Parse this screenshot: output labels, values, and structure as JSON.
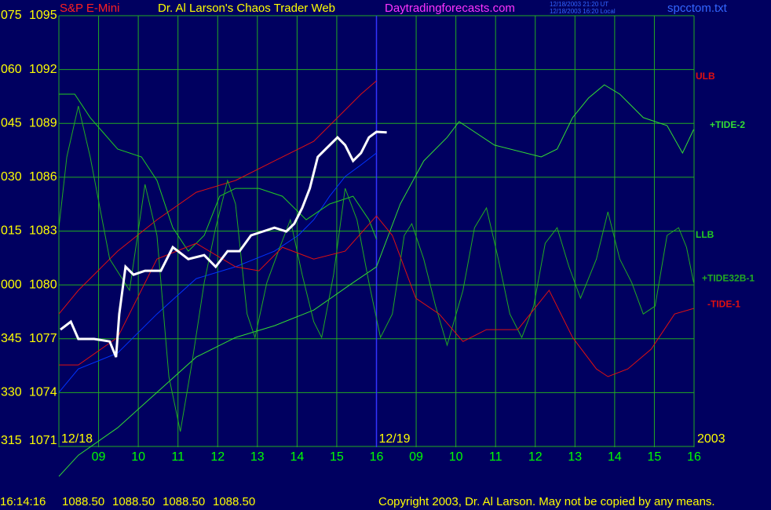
{
  "chart_data": {
    "type": "line",
    "header": {
      "symbol": "S&P E-Mini",
      "title": "Dr. Al Larson's Chaos Trader Web",
      "site": "Daytradingforecasts.com",
      "timestamp_ut": "12/18/2003 21:20 UT",
      "timestamp_local": "12/18/2003 16:20 Local",
      "file": "spcctom.txt"
    },
    "xlim": [
      0,
      16
    ],
    "ylim": [
      1071,
      1095
    ],
    "yticks": [
      1071,
      1074,
      1077,
      1080,
      1083,
      1086,
      1089,
      1092,
      1095
    ],
    "angle_labels": [
      "315",
      "330",
      "345",
      "000",
      "015",
      "030",
      "045",
      "060",
      "075"
    ],
    "xticks": [
      {
        "value": 1,
        "label": "09"
      },
      {
        "value": 2,
        "label": "10"
      },
      {
        "value": 3,
        "label": "11"
      },
      {
        "value": 4,
        "label": "12"
      },
      {
        "value": 5,
        "label": "13"
      },
      {
        "value": 6,
        "label": "14"
      },
      {
        "value": 7,
        "label": "15"
      },
      {
        "value": 8,
        "label": "16"
      },
      {
        "value": 9,
        "label": "09"
      },
      {
        "value": 10,
        "label": "10"
      },
      {
        "value": 11,
        "label": "11"
      },
      {
        "value": 12,
        "label": "12"
      },
      {
        "value": 13,
        "label": "13"
      },
      {
        "value": 14,
        "label": "14"
      },
      {
        "value": 15,
        "label": "15"
      },
      {
        "value": 16,
        "label": "16"
      }
    ],
    "dates": [
      {
        "value": 0,
        "label": "12/18"
      },
      {
        "value": 8,
        "label": "12/19"
      }
    ],
    "year_label": "2003",
    "grid": true,
    "series": [
      {
        "color": "#0033ff",
        "x": [
          0,
          0.49,
          1.48,
          2.47,
          3.46,
          4.45,
          5.43,
          6.03,
          6.42,
          6.82,
          7.21,
          7.61,
          8.0
        ],
        "values": [
          1074.01,
          1075.32,
          1076.2,
          1078.38,
          1080.35,
          1081.01,
          1081.88,
          1082.76,
          1083.63,
          1084.94,
          1086.04,
          1086.69,
          1087.35
        ]
      },
      {
        "name": "ULB",
        "color": "#e01010",
        "x": [
          0,
          0.49,
          1.48,
          2.47,
          3.46,
          4.45,
          5.43,
          6.42,
          7.02,
          7.61,
          8.0
        ],
        "values": [
          1078.38,
          1079.7,
          1081.88,
          1083.63,
          1085.16,
          1085.82,
          1086.91,
          1088.0,
          1089.32,
          1090.63,
          1091.37
        ]
      },
      {
        "name": "+TIDE-2",
        "color": "#33dd33",
        "x": [
          0,
          0.49,
          1.48,
          2.47,
          3.46,
          4.45,
          5.43,
          6.42,
          7.41,
          8.0,
          8.6,
          9.19,
          9.78,
          10.08,
          10.97,
          12.15,
          12.55,
          12.94,
          13.34,
          13.74,
          14.13,
          14.72,
          15.32,
          15.71,
          15.99
        ],
        "values": [
          1069.33,
          1070.51,
          1072.04,
          1074.01,
          1075.98,
          1077.07,
          1077.73,
          1078.6,
          1080.13,
          1081.01,
          1084.51,
          1086.91,
          1088.22,
          1089.1,
          1087.79,
          1087.13,
          1087.57,
          1089.32,
          1090.41,
          1091.15,
          1090.63,
          1089.32,
          1088.88,
          1087.35,
          1088.66
        ]
      },
      {
        "name": "LLB",
        "color": "#22cc22",
        "x": [
          0,
          0.4,
          0.79,
          1.48,
          2.08,
          2.47,
          2.87,
          3.26,
          3.66,
          4.05,
          4.45,
          5.04,
          5.63,
          6.23,
          6.82,
          7.41,
          7.81,
          8.0
        ],
        "values": [
          1090.63,
          1090.63,
          1089.32,
          1087.57,
          1087.13,
          1085.82,
          1083.19,
          1081.88,
          1082.76,
          1084.94,
          1085.38,
          1085.38,
          1084.94,
          1083.63,
          1084.51,
          1084.94,
          1083.63,
          1082.54
        ]
      },
      {
        "name": "+TIDE32B-1",
        "color": "#22aa22",
        "x": [
          0,
          0.2,
          0.49,
          0.79,
          1.28,
          1.78,
          2.17,
          2.47,
          2.77,
          3.06,
          3.36,
          3.66,
          3.95,
          4.25,
          4.45,
          4.74,
          4.94,
          5.24,
          5.53,
          5.83,
          6.13,
          6.42,
          6.62,
          6.92,
          7.21,
          7.51,
          7.81,
          8.1,
          8.4,
          8.7,
          8.89,
          9.19,
          9.49,
          9.78,
          10.18,
          10.47,
          10.77,
          11.07,
          11.36,
          11.66,
          11.96,
          12.25,
          12.55,
          12.85,
          13.14,
          13.54,
          13.83,
          14.13,
          14.43,
          14.72,
          15.02,
          15.32,
          15.61,
          15.81,
          15.99
        ],
        "values": [
          1083.19,
          1087.13,
          1089.97,
          1087.13,
          1081.44,
          1079.7,
          1085.6,
          1082.76,
          1074.89,
          1071.83,
          1075.76,
          1080.13,
          1083.19,
          1085.82,
          1084.51,
          1078.38,
          1077.07,
          1080.13,
          1081.88,
          1083.63,
          1080.57,
          1077.95,
          1077.07,
          1080.57,
          1085.38,
          1083.63,
          1080.13,
          1077.07,
          1078.38,
          1082.76,
          1083.41,
          1081.44,
          1078.82,
          1076.64,
          1079.7,
          1083.19,
          1084.29,
          1081.44,
          1078.38,
          1077.07,
          1078.82,
          1082.32,
          1083.19,
          1081.01,
          1079.26,
          1081.44,
          1084.07,
          1081.44,
          1080.13,
          1078.38,
          1078.82,
          1082.76,
          1083.19,
          1082.1,
          1080.13
        ]
      },
      {
        "name": "-TIDE-1",
        "color": "#e01010",
        "x": [
          0,
          0.49,
          1.48,
          2.47,
          3.46,
          4.45,
          5.04,
          5.63,
          6.42,
          7.21,
          8.0,
          8.4,
          8.99,
          9.58,
          10.18,
          10.77,
          11.56,
          12.35,
          12.94,
          13.54,
          13.83,
          14.33,
          14.92,
          15.51,
          15.99
        ],
        "values": [
          1075.54,
          1075.54,
          1077.07,
          1081.44,
          1082.32,
          1081.01,
          1080.79,
          1082.1,
          1081.44,
          1081.88,
          1083.85,
          1082.76,
          1079.26,
          1078.38,
          1076.85,
          1077.51,
          1077.51,
          1079.7,
          1077.07,
          1075.32,
          1074.89,
          1075.32,
          1076.42,
          1078.38,
          1078.69
        ]
      },
      {
        "color": "#ffffff",
        "x": [
          0.04,
          0.3,
          0.49,
          0.89,
          1.28,
          1.44,
          1.52,
          1.68,
          1.88,
          2.17,
          2.57,
          2.87,
          3.26,
          3.66,
          3.95,
          4.25,
          4.55,
          4.84,
          5.14,
          5.43,
          5.73,
          5.93,
          6.13,
          6.32,
          6.52,
          6.72,
          7.02,
          7.21,
          7.41,
          7.61,
          7.81,
          8.0,
          8.26
        ],
        "values": [
          1077.51,
          1077.95,
          1076.99,
          1076.99,
          1076.85,
          1075.98,
          1078.38,
          1081.01,
          1080.57,
          1080.79,
          1080.79,
          1082.1,
          1081.44,
          1081.66,
          1081.01,
          1081.88,
          1081.88,
          1082.76,
          1082.98,
          1083.19,
          1082.98,
          1083.41,
          1084.29,
          1085.38,
          1087.13,
          1087.57,
          1088.22,
          1087.79,
          1086.91,
          1087.35,
          1088.22,
          1088.53,
          1088.5
        ]
      }
    ],
    "footer": {
      "time": "16:14:16",
      "quote": [
        "1088.50",
        "1088.50",
        "1088.50",
        "1088.50"
      ],
      "copyright": "Copyright 2003, Dr. Al Larson. May not be copied by any means."
    }
  }
}
